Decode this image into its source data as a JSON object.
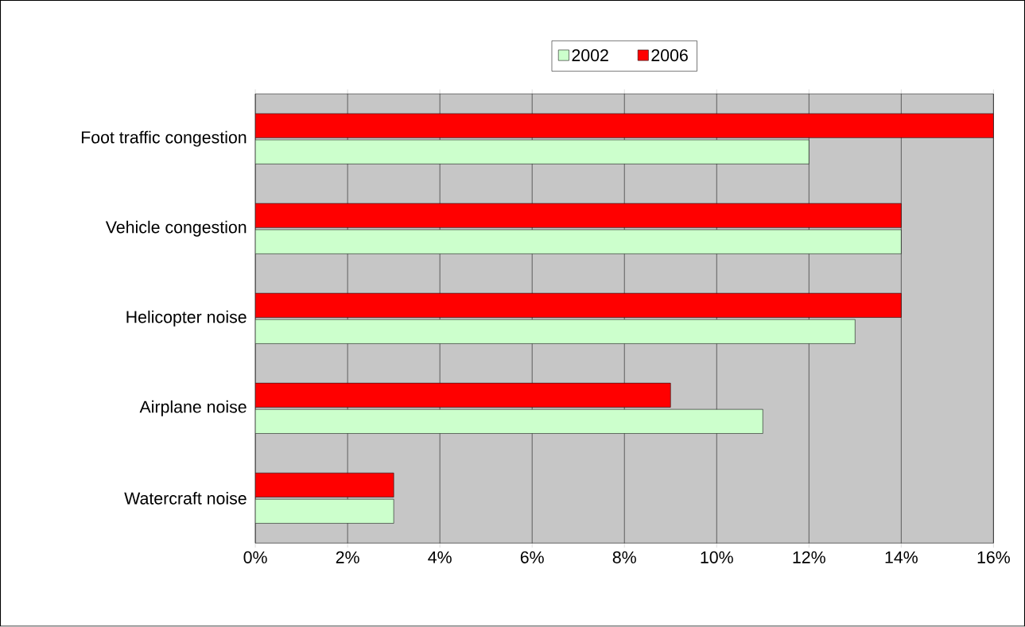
{
  "chart_data": {
    "type": "bar",
    "orientation": "horizontal",
    "categories": [
      "Foot traffic congestion",
      "Vehicle congestion",
      "Helicopter noise",
      "Airplane noise",
      "Watercraft noise"
    ],
    "series": [
      {
        "name": "2002",
        "color": "#ccffcc",
        "values": [
          12,
          14,
          13,
          11,
          3
        ]
      },
      {
        "name": "2006",
        "color": "#ff0000",
        "values": [
          16,
          14,
          14,
          9,
          3
        ]
      }
    ],
    "xlim": [
      0,
      16
    ],
    "xticks": [
      {
        "value": 0,
        "label": "0%"
      },
      {
        "value": 2,
        "label": "2%"
      },
      {
        "value": 4,
        "label": "4%"
      },
      {
        "value": 6,
        "label": "6%"
      },
      {
        "value": 8,
        "label": "8%"
      },
      {
        "value": 10,
        "label": "10%"
      },
      {
        "value": 12,
        "label": "12%"
      },
      {
        "value": 14,
        "label": "14%"
      },
      {
        "value": 16,
        "label": "16%"
      }
    ],
    "grid": "x",
    "legend": "top"
  }
}
